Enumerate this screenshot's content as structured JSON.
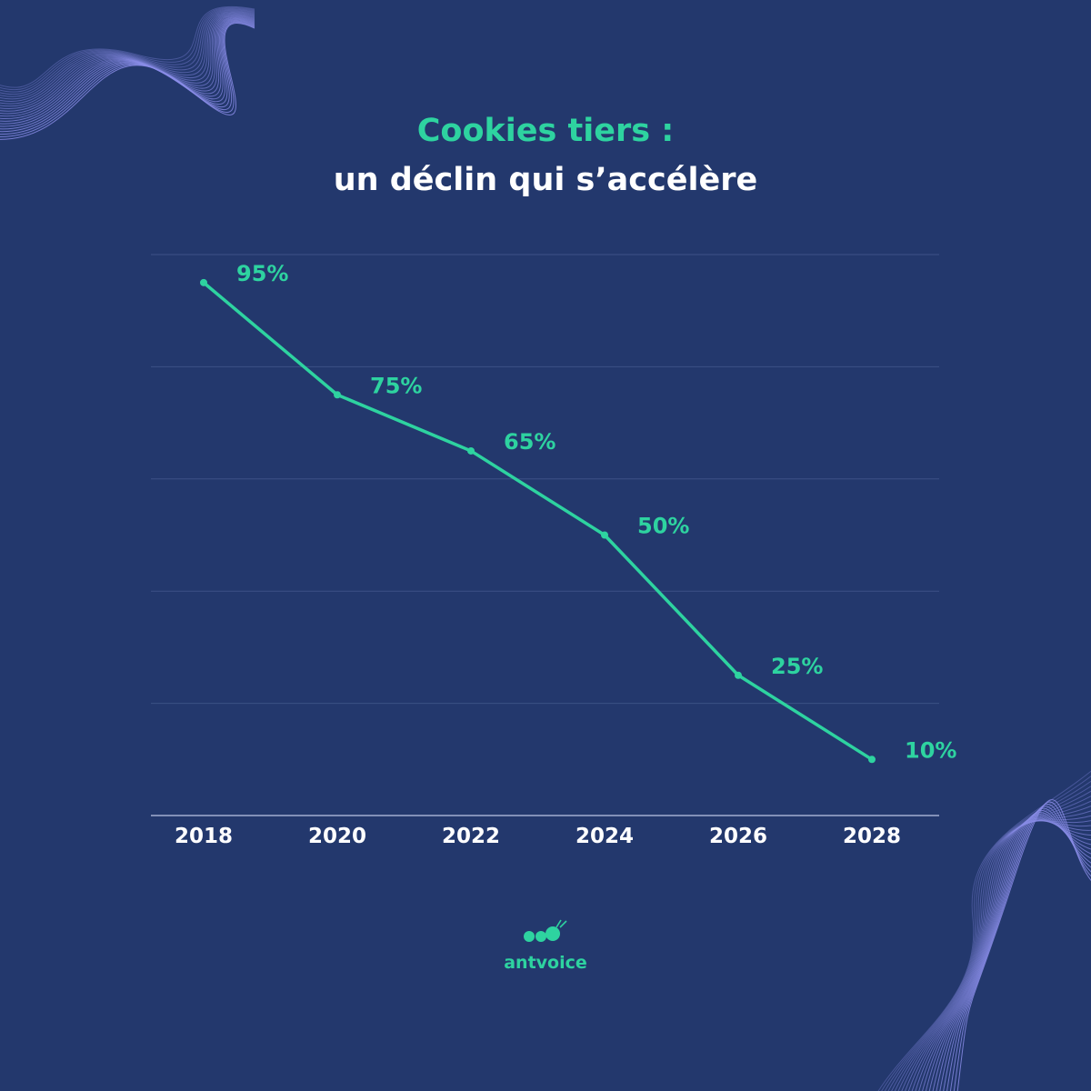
{
  "title": {
    "line1": "Cookies tiers :",
    "line2": "un déclin qui s’accélère"
  },
  "colors": {
    "background": "#23386d",
    "accent": "#2ed3a0",
    "grid": "#3c5186",
    "axis_text": "#ffffff",
    "wave": "#8a8de8"
  },
  "chart_data": {
    "type": "line",
    "title": "Cookies tiers : un déclin qui s’accélère",
    "x": [
      "2018",
      "2020",
      "2022",
      "2024",
      "2026",
      "2028"
    ],
    "series": [
      {
        "values": [
          95,
          75,
          65,
          50,
          25,
          10
        ],
        "labels": [
          "95%",
          "75%",
          "65%",
          "50%",
          "25%",
          "10%"
        ]
      }
    ],
    "ylim": [
      0,
      100
    ],
    "grid": true,
    "legend": "none"
  },
  "logo": {
    "text": "antvoice",
    "icon": "ant-dots-icon"
  }
}
